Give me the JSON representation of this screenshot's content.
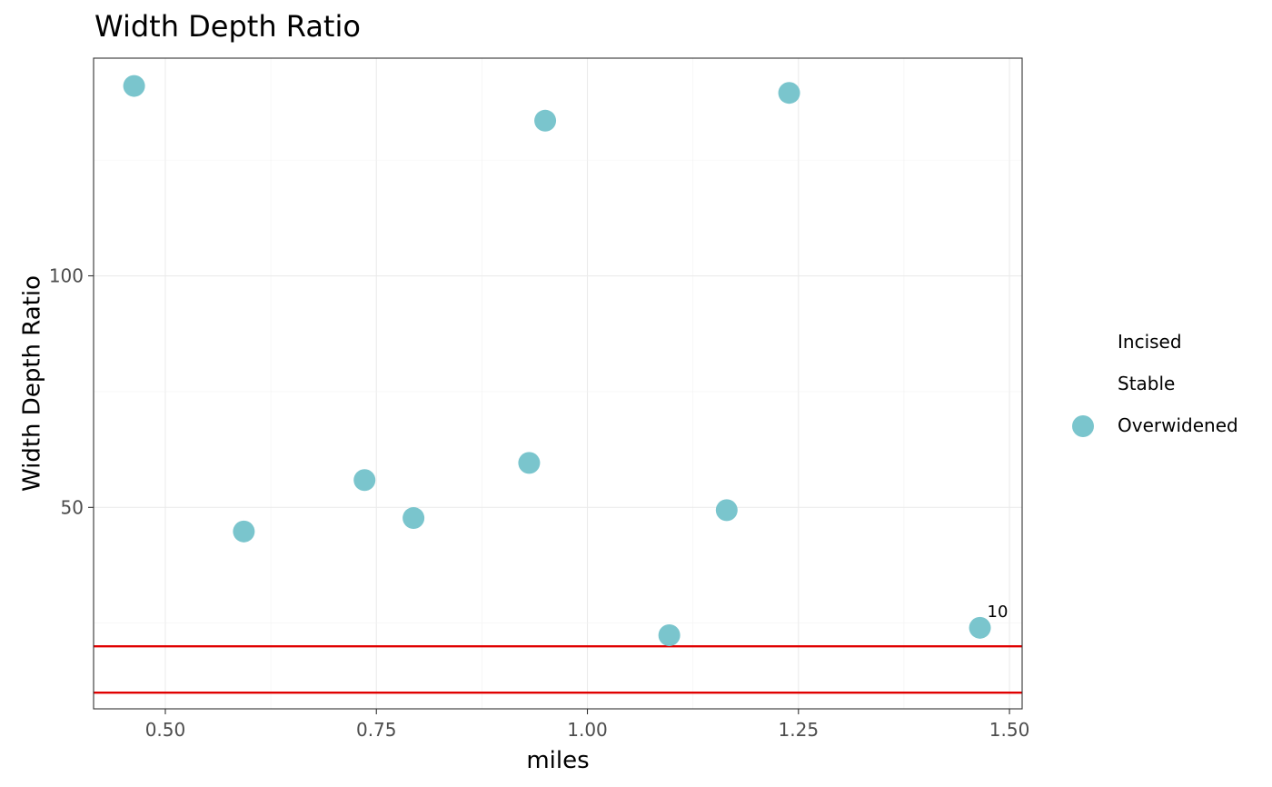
{
  "chart_data": {
    "type": "scatter",
    "title": "Width Depth Ratio",
    "xlabel": "miles",
    "ylabel": "Width Depth Ratio",
    "xlim": [
      0.415,
      1.515
    ],
    "ylim": [
      6.5,
      147
    ],
    "x_ticks": [
      0.5,
      0.75,
      1.0,
      1.25,
      1.5
    ],
    "x_tick_labels": [
      "0.50",
      "0.75",
      "1.00",
      "1.25",
      "1.50"
    ],
    "y_ticks": [
      50,
      100
    ],
    "y_tick_labels": [
      "50",
      "100"
    ],
    "grid": true,
    "legend_position": "right",
    "legend": [
      "Incised",
      "Stable",
      "Overwidened"
    ],
    "series": [
      {
        "name": "Incised",
        "color": "#00000000",
        "points": []
      },
      {
        "name": "Stable",
        "color": "#00000000",
        "points": []
      },
      {
        "name": "Overwidened",
        "color": "#7ac5cd",
        "points": [
          {
            "x": 0.463,
            "y": 141
          },
          {
            "x": 0.593,
            "y": 44.8
          },
          {
            "x": 0.736,
            "y": 55.9
          },
          {
            "x": 0.794,
            "y": 47.7
          },
          {
            "x": 0.931,
            "y": 59.6
          },
          {
            "x": 0.95,
            "y": 133.5
          },
          {
            "x": 1.097,
            "y": 22.4
          },
          {
            "x": 1.165,
            "y": 49.4
          },
          {
            "x": 1.239,
            "y": 139.5
          },
          {
            "x": 1.465,
            "y": 24.0,
            "label": "10"
          }
        ]
      }
    ],
    "hlines": [
      {
        "y": 20,
        "color": "#e00000"
      },
      {
        "y": 10,
        "color": "#e00000"
      }
    ]
  }
}
